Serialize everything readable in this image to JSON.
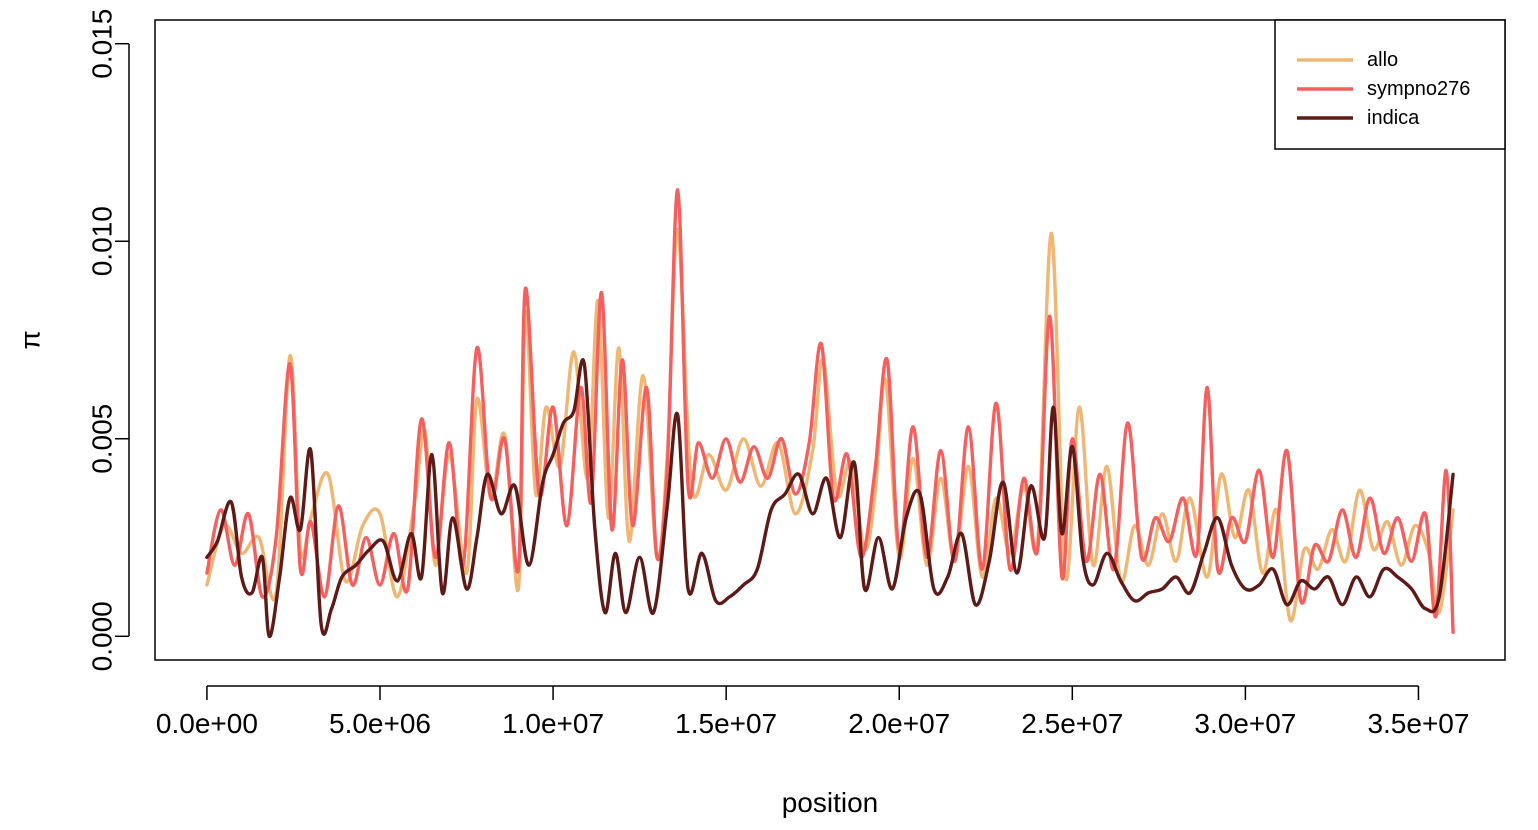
{
  "chart_data": {
    "type": "line",
    "title": "",
    "xlabel": "position",
    "ylabel": "π",
    "xlim": [
      -1500000,
      37500000
    ],
    "ylim": [
      -0.0006,
      0.0156
    ],
    "x_ticks": [
      0,
      5000000,
      10000000,
      15000000,
      20000000,
      25000000,
      30000000,
      35000000
    ],
    "x_tick_labels": [
      "0.0e+00",
      "5.0e+06",
      "1.0e+07",
      "1.5e+07",
      "2.0e+07",
      "2.5e+07",
      "3.0e+07",
      "3.5e+07"
    ],
    "y_ticks": [
      0.0,
      0.005,
      0.01,
      0.015
    ],
    "y_tick_labels": [
      "0.000",
      "0.005",
      "0.010",
      "0.015"
    ],
    "grid": false,
    "legend_position": "top-right",
    "series": [
      {
        "name": "allo",
        "color": "#F0B774",
        "x": [
          0,
          500000,
          1000000,
          1500000,
          2000000,
          2400000,
          2700000,
          3000000,
          3500000,
          4000000,
          4500000,
          5000000,
          5500000,
          6000000,
          6300000,
          6600000,
          7000000,
          7500000,
          7800000,
          8200000,
          8600000,
          9000000,
          9200000,
          9500000,
          9800000,
          10200000,
          10600000,
          11000000,
          11300000,
          11600000,
          11900000,
          12200000,
          12600000,
          13000000,
          13300000,
          13600000,
          14000000,
          14500000,
          15000000,
          15500000,
          16000000,
          16500000,
          17000000,
          17500000,
          17800000,
          18200000,
          18600000,
          19000000,
          19300000,
          19600000,
          20000000,
          20400000,
          20800000,
          21200000,
          21600000,
          22000000,
          22400000,
          22800000,
          23200000,
          23600000,
          24000000,
          24400000,
          24800000,
          25200000,
          25600000,
          26000000,
          26400000,
          26800000,
          27200000,
          27600000,
          28000000,
          28400000,
          28900000,
          29300000,
          29700000,
          30100000,
          30500000,
          30900000,
          31300000,
          31700000,
          32100000,
          32500000,
          32900000,
          33300000,
          33700000,
          34100000,
          34500000,
          34900000,
          35300000,
          35600000,
          36000000
        ],
        "y": [
          0.0013,
          0.0028,
          0.0021,
          0.0025,
          0.0011,
          0.0071,
          0.0022,
          0.003,
          0.0041,
          0.0014,
          0.0028,
          0.0031,
          0.001,
          0.0034,
          0.0052,
          0.0018,
          0.0046,
          0.0016,
          0.006,
          0.0035,
          0.0051,
          0.0012,
          0.0082,
          0.0036,
          0.0058,
          0.0043,
          0.0072,
          0.004,
          0.0085,
          0.003,
          0.0073,
          0.0024,
          0.0066,
          0.002,
          0.0046,
          0.0103,
          0.0038,
          0.0046,
          0.0037,
          0.005,
          0.0038,
          0.0049,
          0.0031,
          0.0047,
          0.007,
          0.0036,
          0.0044,
          0.0022,
          0.0036,
          0.0065,
          0.002,
          0.0045,
          0.0018,
          0.004,
          0.0019,
          0.0043,
          0.0015,
          0.0035,
          0.0021,
          0.0038,
          0.0024,
          0.0102,
          0.0015,
          0.0058,
          0.0018,
          0.0043,
          0.0014,
          0.0028,
          0.0018,
          0.0031,
          0.0019,
          0.0035,
          0.0015,
          0.0041,
          0.0025,
          0.0037,
          0.0016,
          0.0032,
          0.0004,
          0.0022,
          0.0017,
          0.0027,
          0.0019,
          0.0037,
          0.0022,
          0.0029,
          0.0018,
          0.0028,
          0.0021,
          0.0006,
          0.0032
        ]
      },
      {
        "name": "sympno276",
        "color": "#F5605F",
        "x": [
          0,
          400000,
          800000,
          1200000,
          1600000,
          2000000,
          2400000,
          2700000,
          3000000,
          3400000,
          3800000,
          4200000,
          4600000,
          5000000,
          5400000,
          5800000,
          6200000,
          6600000,
          7000000,
          7400000,
          7800000,
          8200000,
          8600000,
          9000000,
          9200000,
          9600000,
          10000000,
          10400000,
          10800000,
          11100000,
          11400000,
          11700000,
          12000000,
          12300000,
          12700000,
          13000000,
          13300000,
          13600000,
          13900000,
          14200000,
          14600000,
          15000000,
          15400000,
          15800000,
          16200000,
          16600000,
          17000000,
          17400000,
          17750000,
          18100000,
          18500000,
          18900000,
          19300000,
          19650000,
          20000000,
          20400000,
          20800000,
          21200000,
          21600000,
          22000000,
          22400000,
          22800000,
          23200000,
          23600000,
          24000000,
          24350000,
          24700000,
          25000000,
          25400000,
          25800000,
          26200000,
          26600000,
          27000000,
          27400000,
          27800000,
          28200000,
          28600000,
          28900000,
          29200000,
          29600000,
          30000000,
          30400000,
          30800000,
          31200000,
          31600000,
          32000000,
          32400000,
          32800000,
          33200000,
          33600000,
          34000000,
          34400000,
          34800000,
          35200000,
          35500000,
          35800000,
          36000000
        ],
        "y": [
          0.0016,
          0.0032,
          0.0018,
          0.0031,
          0.001,
          0.0025,
          0.0069,
          0.0017,
          0.0029,
          0.001,
          0.0033,
          0.0013,
          0.0025,
          0.0013,
          0.0026,
          0.0012,
          0.0055,
          0.002,
          0.0049,
          0.0018,
          0.0073,
          0.0035,
          0.005,
          0.0017,
          0.0088,
          0.0036,
          0.0058,
          0.0028,
          0.0063,
          0.0034,
          0.0087,
          0.0027,
          0.007,
          0.0028,
          0.0063,
          0.002,
          0.0043,
          0.0113,
          0.0038,
          0.0049,
          0.004,
          0.005,
          0.0039,
          0.0048,
          0.004,
          0.005,
          0.0036,
          0.0049,
          0.0074,
          0.0035,
          0.0046,
          0.002,
          0.0042,
          0.007,
          0.0022,
          0.0053,
          0.002,
          0.0047,
          0.0019,
          0.0053,
          0.0017,
          0.0059,
          0.0017,
          0.004,
          0.0022,
          0.0081,
          0.0015,
          0.005,
          0.0019,
          0.0041,
          0.0017,
          0.0054,
          0.002,
          0.003,
          0.0024,
          0.0035,
          0.0021,
          0.0063,
          0.0017,
          0.003,
          0.0024,
          0.0042,
          0.002,
          0.0047,
          0.0009,
          0.0023,
          0.0019,
          0.0032,
          0.002,
          0.0035,
          0.0021,
          0.003,
          0.0019,
          0.0031,
          0.0005,
          0.0042,
          0.0001
        ]
      },
      {
        "name": "indica",
        "color": "#5D1A17",
        "x": [
          0,
          300000,
          700000,
          1000000,
          1300000,
          1600000,
          1800000,
          2100000,
          2400000,
          2700000,
          3000000,
          3300000,
          3600000,
          3900000,
          4300000,
          4700000,
          5100000,
          5500000,
          5900000,
          6200000,
          6500000,
          6800000,
          7100000,
          7500000,
          7800000,
          8100000,
          8500000,
          8900000,
          9300000,
          9700000,
          10000000,
          10300000,
          10600000,
          10900000,
          11200000,
          11500000,
          11800000,
          12100000,
          12500000,
          12900000,
          13300000,
          13600000,
          13900000,
          14300000,
          14700000,
          15100000,
          15500000,
          15900000,
          16300000,
          16700000,
          17100000,
          17500000,
          17900000,
          18300000,
          18700000,
          19000000,
          19400000,
          19800000,
          20200000,
          20600000,
          21000000,
          21400000,
          21800000,
          22200000,
          22600000,
          23000000,
          23400000,
          23800000,
          24200000,
          24450000,
          24700000,
          25000000,
          25300000,
          25600000,
          26000000,
          26400000,
          26800000,
          27200000,
          27600000,
          28000000,
          28400000,
          28800000,
          29200000,
          29600000,
          30000000,
          30400000,
          30800000,
          31200000,
          31600000,
          32000000,
          32400000,
          32800000,
          33200000,
          33600000,
          34000000,
          34400000,
          34800000,
          35200000,
          35600000,
          36000000
        ],
        "y": [
          0.002,
          0.0024,
          0.0034,
          0.0015,
          0.0011,
          0.002,
          0.0,
          0.0015,
          0.0035,
          0.0027,
          0.0047,
          0.0003,
          0.0007,
          0.0015,
          0.0018,
          0.0022,
          0.0024,
          0.0014,
          0.0026,
          0.0015,
          0.0046,
          0.0011,
          0.003,
          0.0012,
          0.0025,
          0.0041,
          0.0031,
          0.0038,
          0.0018,
          0.0039,
          0.0046,
          0.0054,
          0.0057,
          0.0069,
          0.0028,
          0.0006,
          0.0021,
          0.0006,
          0.002,
          0.0006,
          0.0033,
          0.0056,
          0.0012,
          0.0021,
          0.0009,
          0.001,
          0.0013,
          0.0017,
          0.0032,
          0.0036,
          0.0041,
          0.0031,
          0.004,
          0.0025,
          0.0044,
          0.0012,
          0.0025,
          0.0012,
          0.003,
          0.0036,
          0.0012,
          0.0015,
          0.0026,
          0.0008,
          0.0019,
          0.0039,
          0.0016,
          0.0038,
          0.0025,
          0.0058,
          0.0026,
          0.0048,
          0.002,
          0.0013,
          0.0021,
          0.0014,
          0.0009,
          0.0011,
          0.0012,
          0.0015,
          0.0011,
          0.0021,
          0.003,
          0.0018,
          0.0012,
          0.0013,
          0.0017,
          0.0008,
          0.0014,
          0.0012,
          0.0015,
          0.0008,
          0.0015,
          0.001,
          0.0017,
          0.0015,
          0.0012,
          0.0007,
          0.001,
          0.0041
        ]
      }
    ]
  }
}
